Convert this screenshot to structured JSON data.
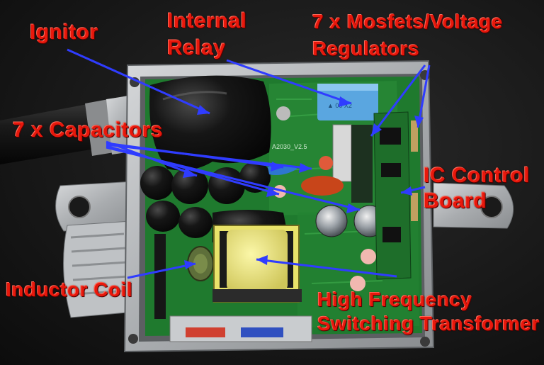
{
  "labels": {
    "ignitor": "Ignitor",
    "internal_relay_line1": "Internal",
    "internal_relay_line2": "Relay",
    "mosfets_line1": "7 x Mosfets/Voltage",
    "mosfets_line2": "Regulators",
    "capacitors": "7 x Capacitors",
    "ic_board_line1": "IC Control",
    "ic_board_line2": "Board",
    "inductor_coil": "Inductor Coil",
    "transformer_line1": "High Frequency",
    "transformer_line2": "Switching Transformer"
  },
  "board_marking": "A2030_V2.5",
  "colors": {
    "label": "#e8180c",
    "arrow": "#2f3cff",
    "housing": "#b9bcbf",
    "pcb": "#1f7a2e"
  }
}
